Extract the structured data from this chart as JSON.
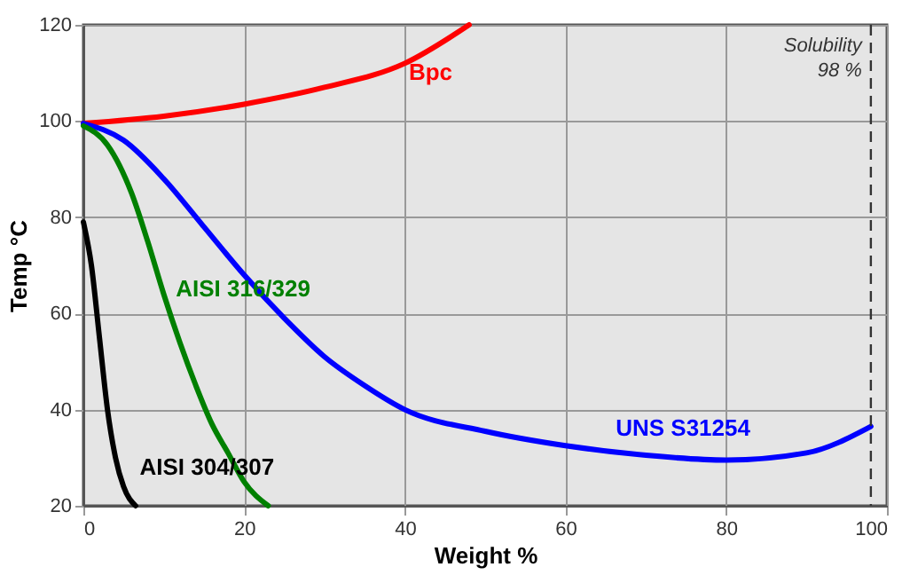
{
  "chart_data": {
    "type": "line",
    "xlabel": "Weight %",
    "ylabel": "Temp °C",
    "xlim": [
      0,
      100
    ],
    "ylim": [
      20,
      120
    ],
    "xticks": [
      0,
      20,
      40,
      60,
      80,
      100
    ],
    "yticks": [
      20,
      40,
      60,
      80,
      100,
      120
    ],
    "grid": true,
    "marker": "none",
    "line_style": "solid",
    "series": [
      {
        "name": "Bpc",
        "color": "#ff0000",
        "x": [
          0,
          10,
          20,
          30,
          40,
          48
        ],
        "values": [
          99.5,
          101,
          103.5,
          107,
          112,
          120
        ]
      },
      {
        "name": "UNS S31254",
        "color": "#0000ff",
        "x": [
          0,
          5,
          10,
          15,
          20,
          25,
          30,
          35,
          40,
          50,
          60,
          70,
          80,
          90,
          98
        ],
        "values": [
          99.5,
          96,
          88,
          78,
          68,
          59,
          51,
          45,
          40,
          35.5,
          32.5,
          30.5,
          29.5,
          31,
          36.5
        ]
      },
      {
        "name": "AISI 316/329",
        "color": "#008000",
        "x": [
          0,
          3,
          6,
          8,
          10,
          12,
          14,
          16,
          18,
          20,
          23
        ],
        "values": [
          99,
          95,
          85,
          75,
          64,
          54,
          45,
          37,
          31,
          25,
          20
        ]
      },
      {
        "name": "AISI 304/307",
        "color": "#000000",
        "x": [
          0,
          1,
          2,
          3,
          4,
          5,
          6.5
        ],
        "values": [
          79,
          70,
          55,
          40,
          30,
          24,
          20
        ]
      }
    ],
    "ref_lines": [
      {
        "axis": "x",
        "value": 98,
        "label": "Solubility 98 %",
        "color": "#333333",
        "line_style": "dashed"
      }
    ]
  }
}
